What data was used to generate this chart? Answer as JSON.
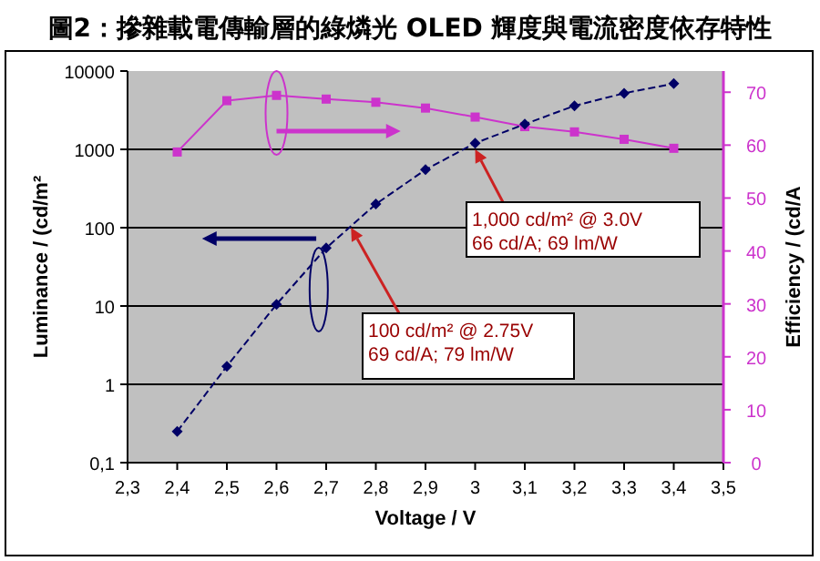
{
  "chart_data": {
    "type": "line",
    "title": "圖2：摻雜載電傳輸層的綠燐光 OLED 輝度與電流密度依存特性",
    "xlabel": "Voltage / V",
    "ylabel": "Luminance / (cd/m²",
    "y2label": "Efficiency / (cd/A",
    "x": [
      2.4,
      2.5,
      2.6,
      2.7,
      2.8,
      2.9,
      3.0,
      3.1,
      3.2,
      3.3,
      3.4
    ],
    "series": [
      {
        "color": "#000066",
        "marker": "diamond",
        "line_style": "dashed",
        "values": [
          0.25,
          1.7,
          10.5,
          55,
          200,
          550,
          1200,
          2100,
          3600,
          5200,
          6900
        ]
      },
      {
        "color": "#cc33cc",
        "marker": "square",
        "line_style": "solid",
        "axis": "y2",
        "values": [
          58.7,
          68.4,
          69.4,
          68.7,
          68.1,
          67,
          65.3,
          63.5,
          62.5,
          61.1,
          59.4
        ]
      }
    ],
    "log": "y",
    "grid": "y",
    "xlim": [
      2.3,
      3.5
    ],
    "xticks": [
      {
        "value": 2.3,
        "label": "2,3"
      },
      {
        "value": 2.4,
        "label": "2,4"
      },
      {
        "value": 2.5,
        "label": "2,5"
      },
      {
        "value": 2.6,
        "label": "2,6"
      },
      {
        "value": 2.7,
        "label": "2,7"
      },
      {
        "value": 2.8,
        "label": "2,8"
      },
      {
        "value": 2.9,
        "label": "2,9"
      },
      3,
      {
        "value": 3.1,
        "label": "3,1"
      },
      {
        "value": 3.2,
        "label": "3,2"
      },
      {
        "value": 3.3,
        "label": "3,3"
      },
      {
        "value": 3.4,
        "label": "3,4"
      },
      {
        "value": 3.5,
        "label": "3,5"
      }
    ],
    "ylim": [
      0.1,
      10000
    ],
    "yticks": [
      {
        "value": 0.1,
        "label": "0,1"
      },
      1,
      10,
      100,
      1000,
      10000
    ],
    "y2lim": [
      0,
      74
    ],
    "y2ticks": [
      0,
      10,
      20,
      30,
      40,
      50,
      60,
      70
    ],
    "annotations": [
      {
        "text": "1,000 cd/m² @ 3.0V\n66 cd/A; 69 lm/W",
        "x": 3.0,
        "y": 1000
      },
      {
        "text": "100 cd/m² @ 2.75V\n69 cd/A; 79 lm/W",
        "x": 2.75,
        "y": 100
      }
    ]
  }
}
